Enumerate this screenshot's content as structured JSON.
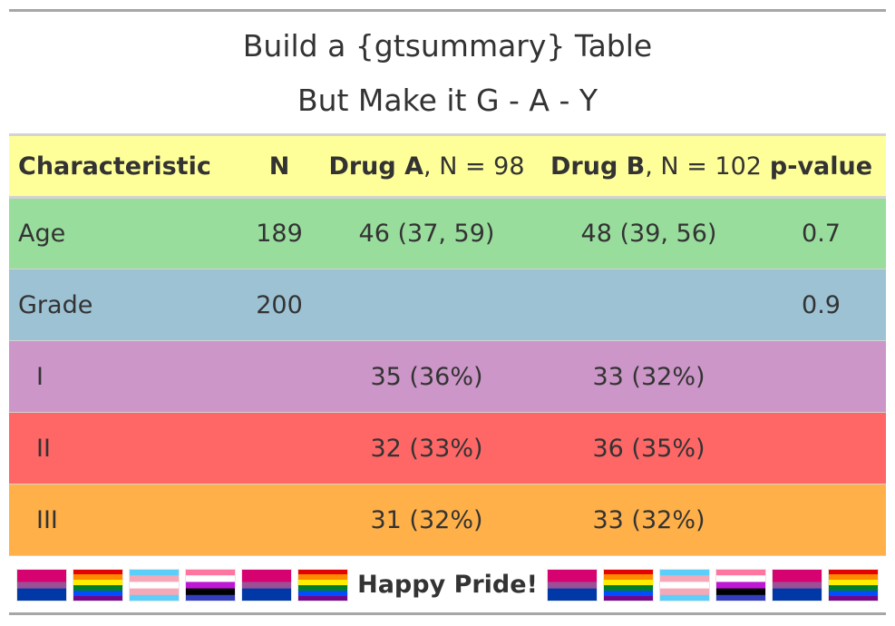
{
  "title": {
    "line1": "Build a {gtsummary} Table",
    "line2": "But Make it G - A - Y"
  },
  "header": {
    "characteristic": "Characteristic",
    "n": "N",
    "drug_a_name": "Drug A",
    "drug_a_n": ", N = 98",
    "drug_b_name": "Drug B",
    "drug_b_n": ", N = 102",
    "p_value": "p-value",
    "bg": "#ffff99"
  },
  "rows": [
    {
      "label": "Age",
      "n": "189",
      "drug_a": "46 (37, 59)",
      "drug_b": "48 (39, 56)",
      "p": "0.7",
      "bg": "#99dd9d"
    },
    {
      "label": "Grade",
      "n": "200",
      "drug_a": "",
      "drug_b": "",
      "p": "0.9",
      "bg": "#9cc2d4"
    },
    {
      "label": "I",
      "n": "",
      "drug_a": "35 (36%)",
      "drug_b": "33 (32%)",
      "p": "",
      "bg": "#cc96c8"
    },
    {
      "label": "II",
      "n": "",
      "drug_a": "32 (33%)",
      "drug_b": "36 (35%)",
      "p": "",
      "bg": "#ff6666"
    },
    {
      "label": "III",
      "n": "",
      "drug_a": "31 (32%)",
      "drug_b": "33 (32%)",
      "p": "",
      "bg": "#ffb048"
    }
  ],
  "footer": {
    "text": "Happy Pride!",
    "flags_left": [
      "bisexual-flag",
      "rainbow-flag",
      "transgender-flag",
      "genderfluid-flag",
      "bisexual-flag",
      "rainbow-flag"
    ],
    "flags_right": [
      "bisexual-flag",
      "rainbow-flag",
      "transgender-flag",
      "genderfluid-flag",
      "bisexual-flag",
      "rainbow-flag"
    ]
  }
}
